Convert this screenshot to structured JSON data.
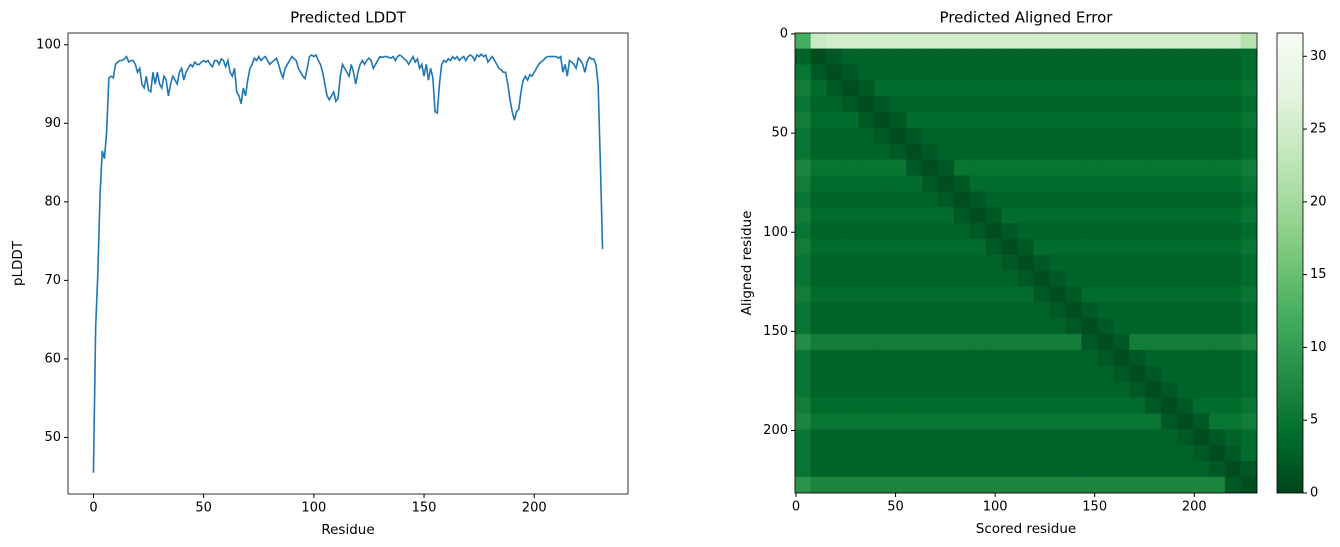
{
  "chart_data": [
    {
      "type": "line",
      "title": "Predicted LDDT",
      "xlabel": "Residue",
      "ylabel": "pLDDT",
      "color": "#1f77b4",
      "x": [
        0,
        1,
        2,
        3,
        4,
        5,
        6,
        7,
        8,
        9,
        10,
        11,
        12,
        13,
        14,
        15,
        16,
        17,
        18,
        19,
        20,
        21,
        22,
        23,
        24,
        25,
        26,
        27,
        28,
        29,
        30,
        31,
        32,
        33,
        34,
        35,
        36,
        37,
        38,
        39,
        40,
        41,
        42,
        43,
        44,
        45,
        46,
        47,
        48,
        49,
        50,
        51,
        52,
        53,
        54,
        55,
        56,
        57,
        58,
        59,
        60,
        61,
        62,
        63,
        64,
        65,
        66,
        67,
        68,
        69,
        70,
        71,
        72,
        73,
        74,
        75,
        76,
        77,
        78,
        79,
        80,
        81,
        82,
        83,
        84,
        85,
        86,
        87,
        88,
        89,
        90,
        91,
        92,
        93,
        94,
        95,
        96,
        97,
        98,
        99,
        100,
        101,
        102,
        103,
        104,
        105,
        106,
        107,
        108,
        109,
        110,
        111,
        112,
        113,
        114,
        115,
        116,
        117,
        118,
        119,
        120,
        121,
        122,
        123,
        124,
        125,
        126,
        127,
        128,
        129,
        130,
        131,
        132,
        133,
        134,
        135,
        136,
        137,
        138,
        139,
        140,
        141,
        142,
        143,
        144,
        145,
        146,
        147,
        148,
        149,
        150,
        151,
        152,
        153,
        154,
        155,
        156,
        157,
        158,
        159,
        160,
        161,
        162,
        163,
        164,
        165,
        166,
        167,
        168,
        169,
        170,
        171,
        172,
        173,
        174,
        175,
        176,
        177,
        178,
        179,
        180,
        181,
        182,
        183,
        184,
        185,
        186,
        187,
        188,
        189,
        190,
        191,
        192,
        193,
        194,
        195,
        196,
        197,
        198,
        199,
        200,
        201,
        202,
        203,
        204,
        205,
        206,
        207,
        208,
        209,
        210,
        211,
        212,
        213,
        214,
        215,
        216,
        217,
        218,
        219,
        220,
        221,
        222,
        223,
        224,
        225,
        226,
        227,
        228,
        229,
        230,
        231
      ],
      "values": [
        45.5,
        64,
        71,
        81,
        86.5,
        85.5,
        89,
        95.8,
        96,
        95.8,
        97.5,
        97.8,
        98,
        98,
        98.2,
        98.5,
        97.8,
        98,
        98,
        97.5,
        96.5,
        97,
        95,
        94.5,
        96,
        94.2,
        94,
        96.5,
        95,
        96.5,
        95,
        94.5,
        96,
        95.5,
        93.5,
        95,
        96,
        95.5,
        95,
        96.5,
        97,
        95.5,
        96.5,
        97,
        97.5,
        97.2,
        97.8,
        97.5,
        97.5,
        97.8,
        98,
        97.8,
        98,
        97.5,
        97.2,
        98,
        98,
        97.5,
        98.2,
        98,
        97.2,
        98,
        96.5,
        96,
        97,
        94,
        93.5,
        92.5,
        94.5,
        93.5,
        95.5,
        97,
        97.5,
        98.3,
        98,
        98.5,
        98,
        98.3,
        98.5,
        98,
        97.5,
        97.8,
        98,
        98.3,
        97.5,
        96.5,
        95.8,
        97,
        97.5,
        98,
        98.5,
        98.2,
        98,
        97,
        96.5,
        96,
        95.7,
        97,
        98.5,
        98.7,
        98.5,
        98.7,
        98,
        97.5,
        96.5,
        95,
        93.5,
        93,
        93.5,
        94,
        92.8,
        93.2,
        96,
        97.5,
        97,
        96.5,
        96,
        97.5,
        96.5,
        95,
        96.5,
        97.5,
        98,
        97.5,
        98,
        98.3,
        98,
        97,
        97.5,
        98,
        98.5,
        98.4,
        98.5,
        98.5,
        98.4,
        98.3,
        98.5,
        98,
        98.5,
        98.7,
        98.5,
        98.2,
        98,
        97.5,
        98,
        98.5,
        97.8,
        98.2,
        97,
        97.5,
        96,
        97.5,
        95.5,
        97,
        95.8,
        91.5,
        91.3,
        95,
        97.5,
        98,
        97.8,
        98.2,
        98,
        98.5,
        98.2,
        98.5,
        98,
        98.3,
        98.5,
        98,
        98.5,
        98.7,
        98.5,
        98,
        98.7,
        98.5,
        98.8,
        98.5,
        98.7,
        97.8,
        98.2,
        98.5,
        98,
        97.5,
        97,
        96.8,
        96.5,
        96.5,
        95,
        93,
        91.5,
        90.4,
        91.5,
        91.8,
        94,
        95.5,
        96,
        95.5,
        96.2,
        96,
        96.5,
        97,
        97.5,
        97.8,
        98,
        98.3,
        98.5,
        98.5,
        98.5,
        98.5,
        98.5,
        98.3,
        98.5,
        96.5,
        97.5,
        96,
        98,
        97.8,
        97.5,
        97,
        98.3,
        98,
        97.5,
        96.5,
        97.8,
        98.4,
        98.2,
        98.2,
        97.5,
        95,
        85,
        74
      ],
      "xlim": [
        -11.55,
        242.55
      ],
      "ylim": [
        42.8,
        101.5
      ],
      "xticks": [
        0,
        50,
        100,
        150,
        200
      ],
      "yticks": [
        50,
        60,
        70,
        80,
        90,
        100
      ]
    },
    {
      "type": "heatmap",
      "title": "Predicted Aligned Error",
      "xlabel": "Scored residue",
      "ylabel": "Aligned residue",
      "xbins": [
        -0.5,
        7.5,
        15.5,
        23.5,
        31.5,
        39.5,
        47.5,
        55.5,
        63.5,
        71.5,
        79.5,
        87.5,
        95.5,
        103.5,
        111.5,
        119.5,
        127.5,
        135.5,
        143.5,
        151.5,
        159.5,
        167.5,
        175.5,
        183.5,
        191.5,
        199.5,
        207.5,
        215.5,
        223.5,
        231.5
      ],
      "ybins": [
        -0.5,
        7.5,
        15.5,
        23.5,
        31.5,
        39.5,
        47.5,
        55.5,
        63.5,
        71.5,
        79.5,
        87.5,
        95.5,
        103.5,
        111.5,
        119.5,
        127.5,
        135.5,
        143.5,
        151.5,
        159.5,
        167.5,
        175.5,
        183.5,
        191.5,
        199.5,
        207.5,
        215.5,
        223.5,
        231.5
      ],
      "values": [
        [
          12,
          24,
          25,
          25,
          25,
          25,
          25,
          25,
          25,
          25,
          25,
          25,
          25,
          25,
          25,
          25,
          25,
          25,
          25,
          25,
          25,
          25,
          25,
          25,
          25,
          25,
          25,
          25,
          22
        ],
        [
          3,
          1,
          2,
          3,
          3,
          3,
          3,
          3,
          3,
          3,
          3,
          3,
          3,
          3,
          3,
          3,
          3,
          3,
          3,
          3,
          3,
          3,
          3,
          3,
          3,
          3,
          3,
          3,
          4
        ],
        [
          5,
          2,
          1,
          2,
          3,
          3,
          3,
          3,
          3,
          3,
          3,
          3,
          3,
          3,
          3,
          3,
          3,
          3,
          3,
          3,
          3,
          3,
          3,
          3,
          3,
          3,
          3,
          3,
          4
        ],
        [
          6,
          4,
          2,
          1,
          2,
          4,
          4,
          4,
          4,
          4,
          4,
          4,
          4,
          4,
          4,
          4,
          4,
          4,
          4,
          4,
          4,
          4,
          4,
          4,
          4,
          4,
          4,
          4,
          5
        ],
        [
          5,
          3,
          3,
          2,
          1,
          2,
          3,
          3,
          3,
          3,
          3,
          3,
          3,
          3,
          3,
          3,
          3,
          3,
          3,
          3,
          3,
          3,
          3,
          3,
          3,
          3,
          3,
          3,
          4
        ],
        [
          6,
          4,
          4,
          4,
          2,
          1,
          2,
          4,
          4,
          4,
          4,
          4,
          4,
          4,
          4,
          4,
          4,
          4,
          4,
          4,
          4,
          4,
          4,
          4,
          4,
          4,
          4,
          4,
          5
        ],
        [
          5,
          3,
          3,
          3,
          3,
          2,
          1,
          2,
          3,
          3,
          3,
          3,
          3,
          3,
          3,
          3,
          3,
          3,
          3,
          3,
          3,
          3,
          3,
          3,
          3,
          3,
          3,
          3,
          4
        ],
        [
          5,
          3,
          3,
          3,
          3,
          3,
          2,
          1,
          2,
          3,
          3,
          3,
          3,
          3,
          3,
          3,
          3,
          3,
          3,
          3,
          3,
          3,
          3,
          3,
          3,
          3,
          3,
          3,
          4
        ],
        [
          7,
          5,
          5,
          5,
          5,
          5,
          5,
          2,
          1,
          2,
          5,
          5,
          5,
          5,
          5,
          5,
          5,
          5,
          5,
          5,
          5,
          5,
          5,
          5,
          5,
          5,
          5,
          5,
          6
        ],
        [
          6,
          4,
          4,
          4,
          4,
          4,
          4,
          4,
          2,
          1,
          2,
          4,
          4,
          4,
          4,
          4,
          4,
          4,
          4,
          4,
          4,
          4,
          4,
          4,
          4,
          4,
          4,
          4,
          5
        ],
        [
          5,
          3,
          3,
          3,
          3,
          3,
          3,
          3,
          3,
          2,
          1,
          2,
          3,
          3,
          3,
          3,
          3,
          3,
          3,
          3,
          3,
          3,
          3,
          3,
          3,
          3,
          3,
          3,
          4
        ],
        [
          6,
          4,
          4,
          4,
          4,
          4,
          4,
          4,
          4,
          4,
          2,
          1,
          2,
          4,
          4,
          4,
          4,
          4,
          4,
          4,
          4,
          4,
          4,
          4,
          4,
          4,
          4,
          4,
          5
        ],
        [
          5,
          3,
          3,
          3,
          3,
          3,
          3,
          3,
          3,
          3,
          3,
          2,
          1,
          2,
          3,
          3,
          3,
          3,
          3,
          3,
          3,
          3,
          3,
          3,
          3,
          3,
          3,
          3,
          4
        ],
        [
          6,
          4,
          4,
          4,
          4,
          4,
          4,
          4,
          4,
          4,
          4,
          4,
          2,
          1,
          2,
          4,
          4,
          4,
          4,
          4,
          4,
          4,
          4,
          4,
          4,
          4,
          4,
          4,
          5
        ],
        [
          5,
          3,
          3,
          3,
          3,
          3,
          3,
          3,
          3,
          3,
          3,
          3,
          3,
          2,
          1,
          2,
          3,
          3,
          3,
          3,
          3,
          3,
          3,
          3,
          3,
          3,
          3,
          3,
          4
        ],
        [
          5,
          3,
          3,
          3,
          3,
          3,
          3,
          3,
          3,
          3,
          3,
          3,
          3,
          3,
          2,
          1,
          2,
          3,
          3,
          3,
          3,
          3,
          3,
          3,
          3,
          3,
          3,
          3,
          4
        ],
        [
          6,
          4,
          4,
          4,
          4,
          4,
          4,
          4,
          4,
          4,
          4,
          4,
          4,
          4,
          4,
          2,
          1,
          2,
          4,
          4,
          4,
          4,
          4,
          4,
          4,
          4,
          4,
          4,
          5
        ],
        [
          5,
          3,
          3,
          3,
          3,
          3,
          3,
          3,
          3,
          3,
          3,
          3,
          3,
          3,
          3,
          3,
          2,
          1,
          2,
          3,
          3,
          3,
          3,
          3,
          3,
          3,
          3,
          3,
          4
        ],
        [
          5,
          3,
          3,
          3,
          3,
          3,
          3,
          3,
          3,
          3,
          3,
          3,
          3,
          3,
          3,
          3,
          3,
          2,
          1,
          2,
          3,
          3,
          3,
          3,
          3,
          3,
          3,
          3,
          4
        ],
        [
          8,
          6,
          6,
          6,
          6,
          6,
          6,
          6,
          6,
          6,
          6,
          6,
          6,
          6,
          6,
          6,
          6,
          6,
          2,
          1,
          2,
          6,
          6,
          6,
          6,
          6,
          6,
          6,
          7
        ],
        [
          5,
          3,
          3,
          3,
          3,
          3,
          3,
          3,
          3,
          3,
          3,
          3,
          3,
          3,
          3,
          3,
          3,
          3,
          3,
          2,
          1,
          2,
          3,
          3,
          3,
          3,
          3,
          3,
          4
        ],
        [
          5,
          3,
          3,
          3,
          3,
          3,
          3,
          3,
          3,
          3,
          3,
          3,
          3,
          3,
          3,
          3,
          3,
          3,
          3,
          3,
          2,
          1,
          2,
          3,
          3,
          3,
          3,
          3,
          4
        ],
        [
          5,
          3,
          3,
          3,
          3,
          3,
          3,
          3,
          3,
          3,
          3,
          3,
          3,
          3,
          3,
          3,
          3,
          3,
          3,
          3,
          3,
          2,
          1,
          2,
          3,
          3,
          3,
          3,
          4
        ],
        [
          6,
          4,
          4,
          4,
          4,
          4,
          4,
          4,
          4,
          4,
          4,
          4,
          4,
          4,
          4,
          4,
          4,
          4,
          4,
          4,
          4,
          4,
          2,
          1,
          2,
          4,
          4,
          4,
          5
        ],
        [
          7,
          5,
          5,
          5,
          5,
          5,
          5,
          5,
          5,
          5,
          5,
          5,
          5,
          5,
          5,
          5,
          5,
          5,
          5,
          5,
          5,
          5,
          5,
          2,
          1,
          2,
          5,
          5,
          6
        ],
        [
          5,
          3,
          3,
          3,
          3,
          3,
          3,
          3,
          3,
          3,
          3,
          3,
          3,
          3,
          3,
          3,
          3,
          3,
          3,
          3,
          3,
          3,
          3,
          3,
          2,
          1,
          2,
          3,
          4
        ],
        [
          5,
          3,
          3,
          3,
          3,
          3,
          3,
          3,
          3,
          3,
          3,
          3,
          3,
          3,
          3,
          3,
          3,
          3,
          3,
          3,
          3,
          3,
          3,
          3,
          3,
          2,
          1,
          2,
          4
        ],
        [
          5,
          3,
          3,
          3,
          3,
          3,
          3,
          3,
          3,
          3,
          3,
          3,
          3,
          3,
          3,
          3,
          3,
          3,
          3,
          3,
          3,
          3,
          3,
          3,
          3,
          3,
          2,
          1,
          2
        ],
        [
          9,
          7,
          7,
          7,
          7,
          7,
          7,
          7,
          7,
          7,
          7,
          7,
          7,
          7,
          7,
          7,
          7,
          7,
          7,
          7,
          7,
          7,
          7,
          7,
          7,
          7,
          7,
          2,
          1
        ]
      ],
      "xlim": [
        -0.5,
        231.5
      ],
      "ylim": [
        231.5,
        -0.5
      ],
      "xticks": [
        0,
        50,
        100,
        150,
        200
      ],
      "yticks": [
        0,
        50,
        100,
        150,
        200
      ],
      "clim": [
        0,
        31.6
      ],
      "cticks": [
        0,
        5,
        10,
        15,
        20,
        25,
        30
      ],
      "colormap": [
        "#00441b",
        "#006d2c",
        "#238b45",
        "#41ab5d",
        "#74c476",
        "#a1d99b",
        "#c7e9c0",
        "#e5f5e0",
        "#f7fcf5"
      ]
    }
  ]
}
